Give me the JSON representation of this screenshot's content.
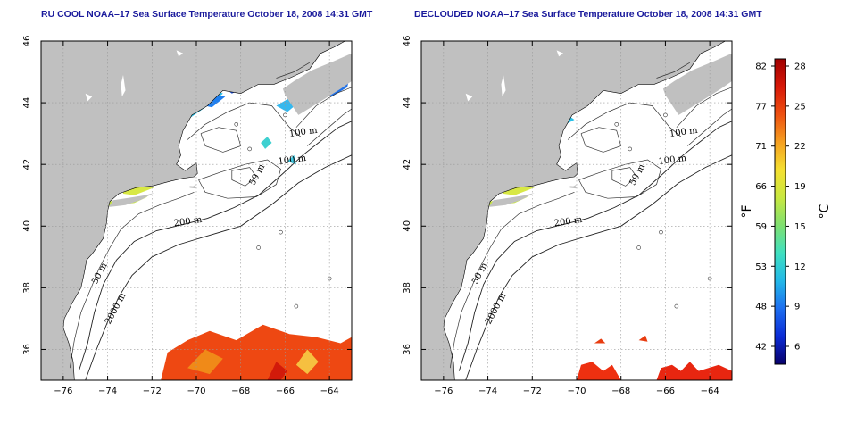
{
  "panels": [
    {
      "title": "RU COOL NOAA–17 Sea Surface Temperature October 18, 2008 14:31 GMT",
      "view": "raw"
    },
    {
      "title": "DECLOUDED NOAA–17 Sea Surface Temperature October 18, 2008 14:31 GMT",
      "view": "declouded"
    }
  ],
  "map": {
    "lon_range": [
      -77,
      -63
    ],
    "lat_range": [
      35,
      46
    ],
    "x_ticks": [
      -76,
      -74,
      -72,
      -70,
      -68,
      -66,
      -64
    ],
    "x_tick_labels": [
      "−76",
      "−74",
      "−72",
      "−70",
      "−68",
      "−66",
      "−64"
    ],
    "y_ticks": [
      36,
      38,
      40,
      42,
      44,
      46
    ],
    "y_tick_labels": [
      "36",
      "38",
      "40",
      "42",
      "44",
      "46"
    ],
    "grid": "dotted",
    "land_color": "#c0c0c0",
    "ocean_color": "#ffffff",
    "contour_labels": [
      {
        "text": "100 m",
        "lon": -65.8,
        "lat": 42.9
      },
      {
        "text": "100 m",
        "lon": -66.3,
        "lat": 42.0
      },
      {
        "text": "50 m",
        "lon": -67.4,
        "lat": 41.3
      },
      {
        "text": "200 m",
        "lon": -71.0,
        "lat": 40.0
      },
      {
        "text": "50 m",
        "lon": -74.5,
        "lat": 38.1
      },
      {
        "text": "2000 m",
        "lon": -73.9,
        "lat": 36.8
      }
    ]
  },
  "colorbar": {
    "fahrenheit_ticks": [
      "82",
      "77",
      "71",
      "66",
      "59",
      "53",
      "48",
      "42"
    ],
    "celsius_ticks": [
      "28",
      "25",
      "22",
      "19",
      "15",
      "12",
      "9",
      "6"
    ],
    "fahrenheit_label": "°F",
    "celsius_label": "°C",
    "colors": [
      "#08006a",
      "#0b2bd6",
      "#1d6ef0",
      "#22b8e8",
      "#3fe0c0",
      "#7fe070",
      "#c8e840",
      "#f5e030",
      "#f5a020",
      "#ee5010",
      "#d81808",
      "#a00000"
    ]
  }
}
